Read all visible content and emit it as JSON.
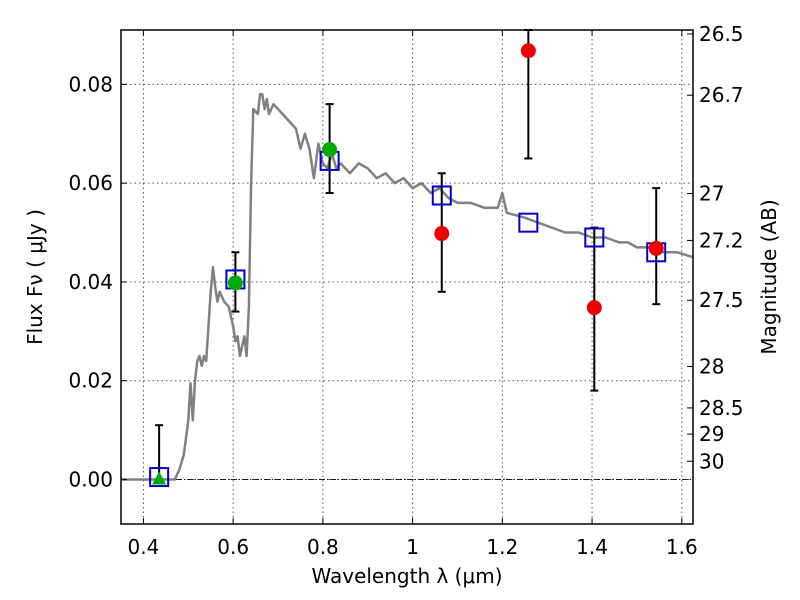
{
  "chart_data": {
    "type": "scatter",
    "xlabel": "Wavelength  λ (μm)",
    "ylabel": "Flux  Fν  ( μJy )",
    "y2label": "Magnitude (AB)",
    "xlim": [
      0.35,
      1.625
    ],
    "ylim": [
      -0.009,
      0.091
    ],
    "grid": true,
    "x_ticks": [
      0.4,
      0.6,
      0.8,
      1.0,
      1.2,
      1.4,
      1.6
    ],
    "x_tick_labels": [
      "0.4",
      "0.6",
      "0.8",
      "1",
      "1.2",
      "1.4",
      "1.6"
    ],
    "y_ticks": [
      0.0,
      0.02,
      0.04,
      0.06,
      0.08
    ],
    "y_tick_labels": [
      "0.00",
      "0.02",
      "0.04",
      "0.06",
      "0.08"
    ],
    "y2_ticks": [
      {
        "label": "26.5",
        "flux": 0.0902
      },
      {
        "label": "26.7",
        "flux": 0.0778
      },
      {
        "label": "27",
        "flux": 0.0579
      },
      {
        "label": "27.2",
        "flux": 0.0484
      },
      {
        "label": "27.5",
        "flux": 0.0363
      },
      {
        "label": "28",
        "flux": 0.0229
      },
      {
        "label": "28.5",
        "flux": 0.0145
      },
      {
        "label": "29",
        "flux": 0.0092
      },
      {
        "label": "30",
        "flux": 0.0037
      }
    ],
    "reference_line": 0.0,
    "colors": {
      "sed": "#808080",
      "model_box": "#0000cc",
      "green": "#00aa00",
      "red": "#ee0000",
      "errorbar": "#000000",
      "grid": "#555555"
    },
    "sed_curve": [
      [
        0.35,
        0.0
      ],
      [
        0.47,
        0.0
      ],
      [
        0.48,
        0.002
      ],
      [
        0.49,
        0.005
      ],
      [
        0.5,
        0.012
      ],
      [
        0.505,
        0.0195
      ],
      [
        0.51,
        0.012
      ],
      [
        0.515,
        0.02
      ],
      [
        0.52,
        0.024
      ],
      [
        0.525,
        0.025
      ],
      [
        0.53,
        0.023
      ],
      [
        0.535,
        0.025
      ],
      [
        0.54,
        0.024
      ],
      [
        0.55,
        0.038
      ],
      [
        0.555,
        0.043
      ],
      [
        0.56,
        0.039
      ],
      [
        0.565,
        0.036
      ],
      [
        0.57,
        0.038
      ],
      [
        0.58,
        0.036
      ],
      [
        0.59,
        0.035
      ],
      [
        0.6,
        0.031
      ],
      [
        0.605,
        0.028
      ],
      [
        0.61,
        0.029
      ],
      [
        0.615,
        0.025
      ],
      [
        0.62,
        0.027
      ],
      [
        0.625,
        0.029
      ],
      [
        0.63,
        0.025
      ],
      [
        0.635,
        0.035
      ],
      [
        0.64,
        0.06
      ],
      [
        0.645,
        0.075
      ],
      [
        0.655,
        0.074
      ],
      [
        0.66,
        0.078
      ],
      [
        0.665,
        0.078
      ],
      [
        0.67,
        0.075
      ],
      [
        0.675,
        0.077
      ],
      [
        0.68,
        0.074
      ],
      [
        0.69,
        0.076
      ],
      [
        0.7,
        0.075
      ],
      [
        0.72,
        0.073
      ],
      [
        0.74,
        0.071
      ],
      [
        0.75,
        0.067
      ],
      [
        0.76,
        0.07
      ],
      [
        0.77,
        0.067
      ],
      [
        0.78,
        0.061
      ],
      [
        0.79,
        0.068
      ],
      [
        0.8,
        0.064
      ],
      [
        0.81,
        0.063
      ],
      [
        0.82,
        0.066
      ],
      [
        0.83,
        0.063
      ],
      [
        0.84,
        0.064
      ],
      [
        0.86,
        0.062
      ],
      [
        0.88,
        0.064
      ],
      [
        0.9,
        0.063
      ],
      [
        0.92,
        0.061
      ],
      [
        0.94,
        0.062
      ],
      [
        0.96,
        0.06
      ],
      [
        0.98,
        0.061
      ],
      [
        1.0,
        0.059
      ],
      [
        1.02,
        0.06
      ],
      [
        1.04,
        0.058
      ],
      [
        1.06,
        0.059
      ],
      [
        1.08,
        0.057
      ],
      [
        1.1,
        0.056
      ],
      [
        1.13,
        0.056
      ],
      [
        1.16,
        0.055
      ],
      [
        1.19,
        0.055
      ],
      [
        1.2,
        0.058
      ],
      [
        1.21,
        0.054
      ],
      [
        1.25,
        0.053
      ],
      [
        1.28,
        0.052
      ],
      [
        1.31,
        0.051
      ],
      [
        1.34,
        0.05
      ],
      [
        1.37,
        0.05
      ],
      [
        1.4,
        0.049
      ],
      [
        1.43,
        0.049
      ],
      [
        1.46,
        0.048
      ],
      [
        1.48,
        0.048
      ],
      [
        1.5,
        0.047
      ],
      [
        1.53,
        0.047
      ],
      [
        1.56,
        0.046
      ],
      [
        1.59,
        0.046
      ],
      [
        1.625,
        0.045
      ]
    ],
    "model_points": [
      {
        "x": 0.435,
        "y": 0.0005
      },
      {
        "x": 0.605,
        "y": 0.0405
      },
      {
        "x": 0.815,
        "y": 0.0645
      },
      {
        "x": 1.065,
        "y": 0.0575
      },
      {
        "x": 1.258,
        "y": 0.052
      },
      {
        "x": 1.405,
        "y": 0.049
      },
      {
        "x": 1.543,
        "y": 0.046
      }
    ],
    "observed_points": [
      {
        "x": 0.435,
        "y": 0.0,
        "err_lo": 0.0,
        "err_hi": 0.011,
        "marker": "triangle",
        "color": "green"
      },
      {
        "x": 0.605,
        "y": 0.0398,
        "err_lo": 0.034,
        "err_hi": 0.046,
        "marker": "circle",
        "color": "green"
      },
      {
        "x": 0.815,
        "y": 0.0668,
        "err_lo": 0.058,
        "err_hi": 0.076,
        "marker": "circle",
        "color": "green"
      },
      {
        "x": 1.065,
        "y": 0.0498,
        "err_lo": 0.038,
        "err_hi": 0.062,
        "marker": "circle",
        "color": "red"
      },
      {
        "x": 1.258,
        "y": 0.0868,
        "err_lo": 0.065,
        "err_hi": 0.091,
        "marker": "circle",
        "color": "red"
      },
      {
        "x": 1.405,
        "y": 0.0348,
        "err_lo": 0.018,
        "err_hi": 0.051,
        "marker": "circle",
        "color": "red"
      },
      {
        "x": 1.543,
        "y": 0.0468,
        "err_lo": 0.0355,
        "err_hi": 0.059,
        "marker": "circle",
        "color": "red"
      }
    ]
  }
}
